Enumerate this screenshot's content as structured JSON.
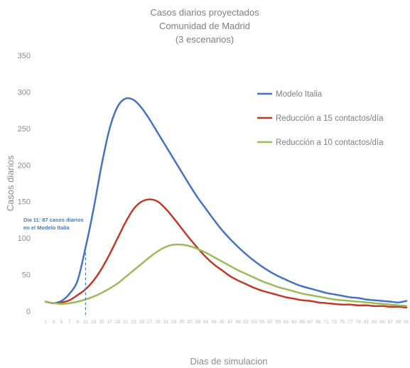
{
  "chart_data": {
    "type": "line",
    "title": [
      "Casos diarios proyectados",
      "Comunidad de Madrid",
      "(3 escenarios)"
    ],
    "xlabel": "Dias de simulacion",
    "ylabel": "Casos diarios",
    "ylim": [
      0,
      350
    ],
    "yticks": [
      0,
      50,
      100,
      150,
      200,
      250,
      300,
      350
    ],
    "xlim": [
      1,
      91
    ],
    "xtick_step": 2,
    "grid": false,
    "legend_position": "right",
    "annotation": {
      "lines": [
        "Dia 11: 87 casos diarios",
        "en el Modelo Italia"
      ],
      "x": 11,
      "y": 87
    },
    "series": [
      {
        "name": "Modelo Italia",
        "color": "#4472c4",
        "points": [
          [
            1,
            13
          ],
          [
            3,
            11
          ],
          [
            5,
            14
          ],
          [
            7,
            24
          ],
          [
            9,
            42
          ],
          [
            11,
            87
          ],
          [
            13,
            140
          ],
          [
            15,
            200
          ],
          [
            17,
            250
          ],
          [
            19,
            280
          ],
          [
            21,
            291
          ],
          [
            23,
            289
          ],
          [
            25,
            278
          ],
          [
            27,
            262
          ],
          [
            29,
            244
          ],
          [
            31,
            226
          ],
          [
            33,
            208
          ],
          [
            35,
            190
          ],
          [
            37,
            172
          ],
          [
            39,
            155
          ],
          [
            41,
            140
          ],
          [
            43,
            125
          ],
          [
            45,
            111
          ],
          [
            47,
            99
          ],
          [
            49,
            88
          ],
          [
            51,
            78
          ],
          [
            53,
            69
          ],
          [
            55,
            61
          ],
          [
            57,
            54
          ],
          [
            59,
            48
          ],
          [
            61,
            43
          ],
          [
            63,
            38
          ],
          [
            65,
            34
          ],
          [
            67,
            31
          ],
          [
            69,
            28
          ],
          [
            71,
            25
          ],
          [
            73,
            23
          ],
          [
            75,
            21
          ],
          [
            77,
            19
          ],
          [
            79,
            18
          ],
          [
            81,
            16
          ],
          [
            83,
            15
          ],
          [
            85,
            14
          ],
          [
            87,
            13
          ],
          [
            89,
            12
          ],
          [
            91,
            14
          ]
        ]
      },
      {
        "name": "Reducción a 15 contactos/día",
        "color": "#c0392b",
        "points": [
          [
            1,
            13
          ],
          [
            3,
            11
          ],
          [
            5,
            12
          ],
          [
            7,
            15
          ],
          [
            9,
            22
          ],
          [
            11,
            30
          ],
          [
            13,
            42
          ],
          [
            15,
            58
          ],
          [
            17,
            78
          ],
          [
            19,
            100
          ],
          [
            21,
            122
          ],
          [
            23,
            140
          ],
          [
            25,
            150
          ],
          [
            27,
            153
          ],
          [
            29,
            150
          ],
          [
            31,
            140
          ],
          [
            33,
            127
          ],
          [
            35,
            113
          ],
          [
            37,
            99
          ],
          [
            39,
            86
          ],
          [
            41,
            74
          ],
          [
            43,
            64
          ],
          [
            45,
            56
          ],
          [
            47,
            48
          ],
          [
            49,
            42
          ],
          [
            51,
            37
          ],
          [
            53,
            32
          ],
          [
            55,
            28
          ],
          [
            57,
            25
          ],
          [
            59,
            22
          ],
          [
            61,
            19
          ],
          [
            63,
            17
          ],
          [
            65,
            15
          ],
          [
            67,
            14
          ],
          [
            69,
            12
          ],
          [
            71,
            11
          ],
          [
            73,
            10
          ],
          [
            75,
            9
          ],
          [
            77,
            9
          ],
          [
            79,
            8
          ],
          [
            81,
            8
          ],
          [
            83,
            7
          ],
          [
            85,
            7
          ],
          [
            87,
            6
          ],
          [
            89,
            6
          ],
          [
            91,
            5
          ]
        ]
      },
      {
        "name": "Reducción a 10 contactos/día",
        "color": "#9bbb59",
        "points": [
          [
            1,
            13
          ],
          [
            3,
            11
          ],
          [
            5,
            10
          ],
          [
            7,
            11
          ],
          [
            9,
            13
          ],
          [
            11,
            16
          ],
          [
            13,
            20
          ],
          [
            15,
            25
          ],
          [
            17,
            31
          ],
          [
            19,
            38
          ],
          [
            21,
            47
          ],
          [
            23,
            56
          ],
          [
            25,
            65
          ],
          [
            27,
            74
          ],
          [
            29,
            82
          ],
          [
            31,
            88
          ],
          [
            33,
            91
          ],
          [
            35,
            91
          ],
          [
            37,
            89
          ],
          [
            39,
            85
          ],
          [
            41,
            80
          ],
          [
            43,
            74
          ],
          [
            45,
            68
          ],
          [
            47,
            62
          ],
          [
            49,
            56
          ],
          [
            51,
            51
          ],
          [
            53,
            46
          ],
          [
            55,
            41
          ],
          [
            57,
            37
          ],
          [
            59,
            33
          ],
          [
            61,
            30
          ],
          [
            63,
            27
          ],
          [
            65,
            24
          ],
          [
            67,
            22
          ],
          [
            69,
            20
          ],
          [
            71,
            18
          ],
          [
            73,
            16
          ],
          [
            75,
            15
          ],
          [
            77,
            14
          ],
          [
            79,
            13
          ],
          [
            81,
            12
          ],
          [
            83,
            11
          ],
          [
            85,
            10
          ],
          [
            87,
            9
          ],
          [
            89,
            8
          ],
          [
            91,
            7
          ]
        ]
      }
    ]
  }
}
